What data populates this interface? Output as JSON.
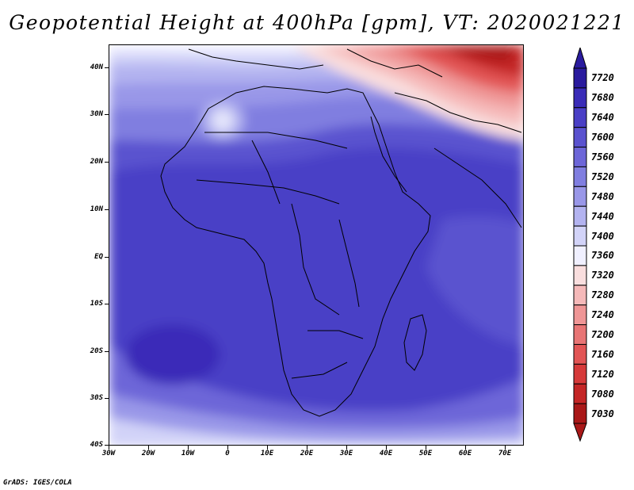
{
  "title": "Geopotential Height at 400hPa [gpm], VT: 2020021221",
  "credit": "GrADS: IGES/COLA",
  "lat_labels": [
    "40N",
    "30N",
    "20N",
    "10N",
    "EQ",
    "10S",
    "20S",
    "30S",
    "40S"
  ],
  "lon_labels": [
    "30W",
    "20W",
    "10W",
    "0",
    "10E",
    "20E",
    "30E",
    "40E",
    "50E",
    "60E",
    "70E"
  ],
  "colorbar": {
    "levels": [
      "7720",
      "7680",
      "7640",
      "7600",
      "7560",
      "7520",
      "7480",
      "7440",
      "7400",
      "7360",
      "7320",
      "7280",
      "7240",
      "7200",
      "7160",
      "7120",
      "7080",
      "7030"
    ],
    "colors": [
      "#2a1b9e",
      "#3a2cb8",
      "#4a3fc6",
      "#5a52cf",
      "#6d66d8",
      "#807ee0",
      "#9997e8",
      "#b3b3f0",
      "#d2d3f8",
      "#f0f0ff",
      "#f9dede",
      "#f5b9b9",
      "#ef9696",
      "#e87575",
      "#e25555",
      "#d63a3a",
      "#c42626",
      "#a91818"
    ]
  },
  "map": {
    "region": "Africa",
    "lat_range": [
      -40,
      45
    ],
    "lon_range": [
      -30,
      75
    ],
    "high_center": "south Atlantic near 25S 20W",
    "low_center": "northeast corner near 40N 60E"
  }
}
